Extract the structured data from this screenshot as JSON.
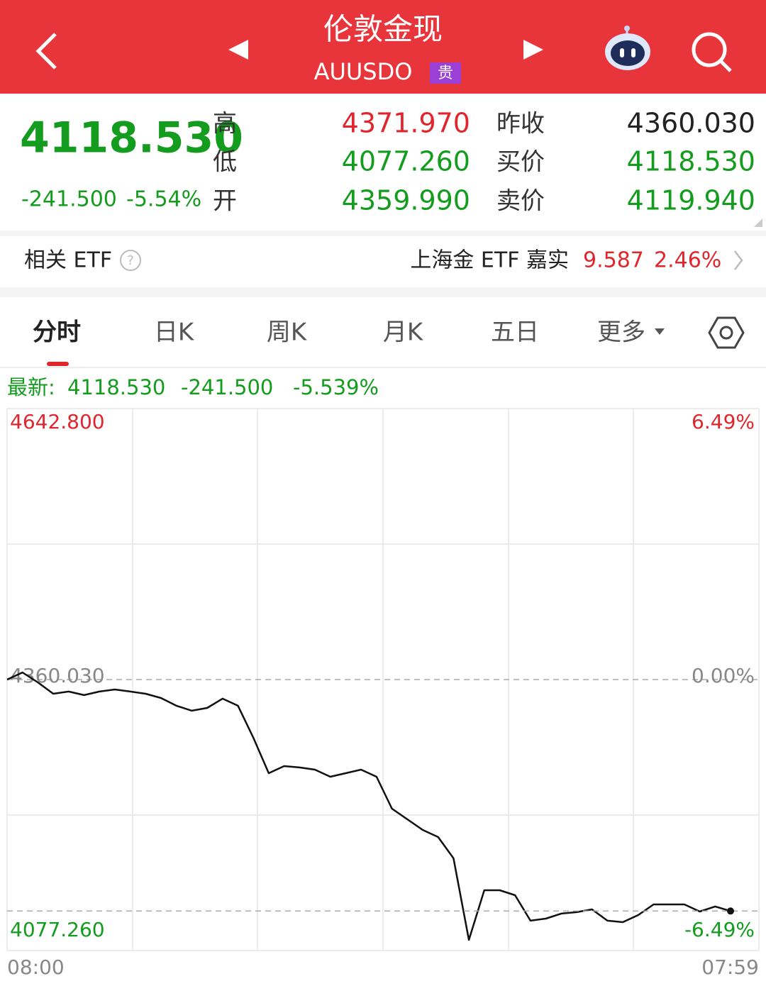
{
  "header": {
    "title": "伦敦金现",
    "code": "AUUSDO",
    "badge": "贵"
  },
  "quote": {
    "price": "4118.530",
    "change": "-241.500",
    "change_pct": "-5.54%",
    "left_stats": [
      {
        "label": "高",
        "value": "4371.970"
      },
      {
        "label": "低",
        "value": "4077.260"
      },
      {
        "label": "开",
        "value": "4359.990"
      }
    ],
    "right_stats": [
      {
        "label": "昨收",
        "value": "4360.030"
      },
      {
        "label": "买价",
        "value": "4118.530"
      },
      {
        "label": "卖价",
        "value": "4119.940"
      }
    ]
  },
  "etf": {
    "label": "相关 ETF",
    "name": "上海金 ETF 嘉实",
    "price": "9.587",
    "change_pct": "2.46%"
  },
  "tabs": [
    "分时",
    "日K",
    "周K",
    "月K",
    "五日",
    "更多"
  ],
  "latest": {
    "label": "最新:",
    "price": "4118.530",
    "change": "-241.500",
    "change_pct": "-5.539%"
  },
  "chart_data": {
    "type": "line",
    "x_labels": [
      "08:00",
      "07:59"
    ],
    "series": [
      {
        "color": "#111111",
        "values": [
          4360.0,
          4367.4,
          4357.1,
          4345.2,
          4347.5,
          4343.8,
          4347.5,
          4349.7,
          4347.5,
          4345.2,
          4340.8,
          4332.7,
          4327.5,
          4330.4,
          4340.1,
          4332.7,
          4299.3,
          4262.3,
          4269.7,
          4268.3,
          4266.0,
          4258.6,
          4262.3,
          4266.0,
          4258.6,
          4225.3,
          4214.2,
          4203.1,
          4195.7,
          4173.5,
          4088.4,
          4140.2,
          4140.2,
          4135.0,
          4108.4,
          4110.6,
          4115.8,
          4117.3,
          4120.2,
          4108.4,
          4106.9,
          4114.3,
          4125.4,
          4125.4,
          4125.4,
          4118.0,
          4123.2,
          4118.5
        ]
      }
    ],
    "ylim": [
      4077.26,
      4642.8
    ],
    "yticks": [
      {
        "value": 4642.8,
        "label": "4642.800"
      },
      {
        "value": 4360.03,
        "label": "4360.030"
      },
      {
        "value": 4077.26,
        "label": "4077.260"
      }
    ],
    "y2lim": [
      -6.49,
      6.49
    ],
    "y2ticks": [
      {
        "value": 6.49,
        "label": "6.49%"
      },
      {
        "value": 0,
        "label": "0.00%"
      },
      {
        "value": -6.49,
        "label": "-6.49%"
      }
    ],
    "grid": true
  }
}
